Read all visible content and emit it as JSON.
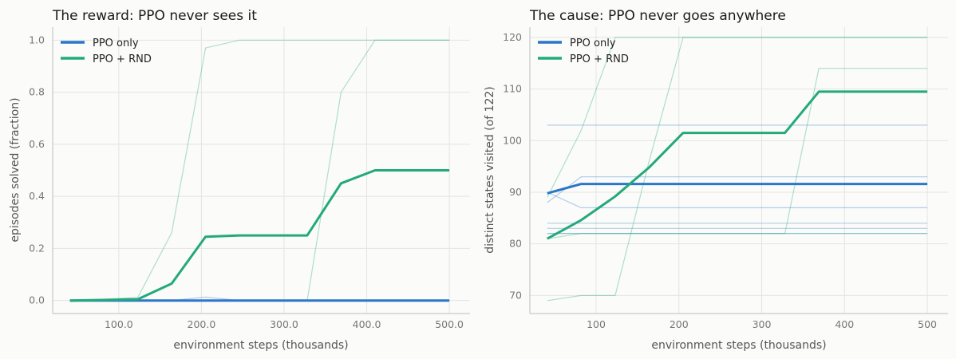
{
  "chart_data": [
    {
      "type": "line",
      "title": "The reward: PPO never sees it",
      "xlabel": "environment steps (thousands)",
      "ylabel": "episodes solved (fraction)",
      "xlim": [
        20,
        525
      ],
      "ylim": [
        -0.05,
        1.05
      ],
      "xticks": [
        100,
        200,
        300,
        400,
        500
      ],
      "yticks": [
        0.0,
        0.2,
        0.4,
        0.6,
        0.8,
        1.0
      ],
      "tick_format": "fixed1",
      "grid": true,
      "legend_position": "top-left",
      "x": [
        41,
        82,
        123,
        164,
        205,
        246,
        287,
        328,
        369,
        410,
        451,
        492,
        500
      ],
      "series": [
        {
          "name": "PPO only",
          "color": "#2a76c9",
          "values": [
            0,
            0,
            0,
            0,
            0,
            0,
            0,
            0,
            0,
            0,
            0,
            0,
            0
          ]
        },
        {
          "name": "PPO + RND",
          "color": "#23a97b",
          "values": [
            0,
            0.002,
            0.005,
            0.065,
            0.245,
            0.25,
            0.25,
            0.25,
            0.45,
            0.5,
            0.5,
            0.5,
            0.5
          ]
        }
      ],
      "runs": [
        {
          "color": "#2a76c9",
          "values": [
            0,
            0,
            0,
            0,
            0.013,
            0,
            0,
            0,
            0,
            0,
            0,
            0,
            0
          ]
        },
        {
          "color": "#23a97b",
          "values": [
            0,
            0.005,
            0.012,
            0.26,
            0.97,
            1,
            1,
            1,
            1,
            1,
            1,
            1,
            1
          ]
        },
        {
          "color": "#23a97b",
          "values": [
            0,
            0,
            0,
            0,
            0,
            0,
            0,
            0,
            0.8,
            1,
            1,
            1,
            1
          ]
        },
        {
          "color": "#23a97b",
          "values": [
            0,
            0,
            0,
            0,
            0,
            0,
            0,
            0,
            0,
            0,
            0,
            0,
            0
          ]
        }
      ]
    },
    {
      "type": "line",
      "title": "The cause: PPO never goes anywhere",
      "xlabel": "environment steps (thousands)",
      "ylabel": "distinct states visited (of 122)",
      "xlim": [
        20,
        525
      ],
      "ylim": [
        66.5,
        122
      ],
      "xticks": [
        100,
        200,
        300,
        400,
        500
      ],
      "yticks": [
        70,
        80,
        90,
        100,
        110,
        120
      ],
      "tick_format": "int",
      "grid": true,
      "legend_position": "top-left",
      "x": [
        41,
        82,
        123,
        164,
        205,
        246,
        287,
        328,
        369,
        410,
        451,
        492,
        500
      ],
      "series": [
        {
          "name": "PPO only",
          "color": "#2a76c9",
          "values": [
            89.8,
            91.6,
            91.6,
            91.6,
            91.6,
            91.6,
            91.6,
            91.6,
            91.6,
            91.6,
            91.6,
            91.6,
            91.6
          ]
        },
        {
          "name": "PPO + RND",
          "color": "#23a97b",
          "values": [
            81,
            84.6,
            89.2,
            94.8,
            101.5,
            101.5,
            101.5,
            101.5,
            109.5,
            109.5,
            109.5,
            109.5,
            109.5
          ]
        }
      ],
      "runs": [
        {
          "color": "#2a76c9",
          "values": [
            103,
            103,
            103,
            103,
            103,
            103,
            103,
            103,
            103,
            103,
            103,
            103,
            103
          ]
        },
        {
          "color": "#2a76c9",
          "values": [
            88,
            93,
            93,
            93,
            93,
            93,
            93,
            93,
            93,
            93,
            93,
            93,
            93
          ]
        },
        {
          "color": "#2a76c9",
          "values": [
            90,
            87,
            87,
            87,
            87,
            87,
            87,
            87,
            87,
            87,
            87,
            87,
            87
          ]
        },
        {
          "color": "#2a76c9",
          "values": [
            84,
            84,
            84,
            84,
            84,
            84,
            84,
            84,
            84,
            84,
            84,
            84,
            84
          ]
        },
        {
          "color": "#2a76c9",
          "values": [
            83,
            83,
            83,
            83,
            83,
            83,
            83,
            83,
            83,
            83,
            83,
            83,
            83
          ]
        },
        {
          "color": "#2a76c9",
          "values": [
            82,
            82,
            82,
            82,
            82,
            82,
            82,
            82,
            82,
            82,
            82,
            82,
            82
          ]
        },
        {
          "color": "#23a97b",
          "values": [
            89,
            102,
            120,
            120,
            120,
            120,
            120,
            120,
            120,
            120,
            120,
            120,
            120
          ]
        },
        {
          "color": "#23a97b",
          "values": [
            81,
            82,
            82,
            82,
            82,
            82,
            82,
            82,
            114,
            114,
            114,
            114,
            114
          ]
        },
        {
          "color": "#23a97b",
          "values": [
            69,
            70,
            70,
            96,
            120,
            120,
            120,
            120,
            120,
            120,
            120,
            120,
            120
          ]
        },
        {
          "color": "#23a97b",
          "values": [
            82,
            82,
            82,
            82,
            82,
            82,
            82,
            82,
            82,
            82,
            82,
            82,
            82
          ]
        }
      ]
    }
  ]
}
